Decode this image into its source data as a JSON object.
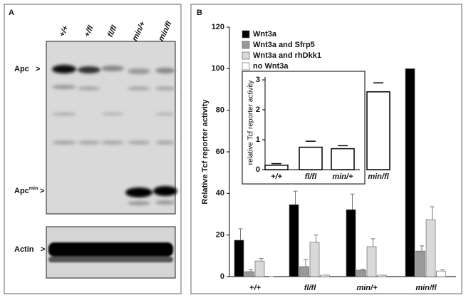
{
  "panel_a": {
    "label": "A",
    "lanes": [
      "+/+",
      "+/fl",
      "fl/fl",
      "min/+",
      "min/fl"
    ],
    "bands": [
      {
        "name": "Apc",
        "marker": ">"
      },
      {
        "name": "Apc",
        "sup": "min",
        "marker": ">"
      },
      {
        "name": "Actin",
        "marker": ">"
      }
    ]
  },
  "chart_data": [
    {
      "type": "bar",
      "panel": "B",
      "ylabel": "Relative Tcf reporter activity",
      "categories": [
        "+/+",
        "fl/fl",
        "min/+",
        "min/fl"
      ],
      "series": [
        {
          "name": "Wnt3a",
          "color": "#000000",
          "values": [
            17.5,
            34.6,
            32.2,
            100
          ],
          "errors": [
            5.5,
            6.5,
            7.5,
            0
          ]
        },
        {
          "name": "Wnt3a and Sfrp5",
          "color": "#999999",
          "values": [
            2.4,
            4.8,
            3.1,
            12.3
          ],
          "errors": [
            1,
            3.4,
            0.5,
            2.5
          ]
        },
        {
          "name": "Wnt3a and rhDkk1",
          "color": "#d9d9d9",
          "values": [
            7.5,
            16.5,
            14.4,
            27.4
          ],
          "errors": [
            1.2,
            3.5,
            3.8,
            6.2
          ]
        },
        {
          "name": "no Wnt3a",
          "color": "#ffffff",
          "values": [
            0,
            0.7,
            0.7,
            2.7
          ],
          "errors": [
            0,
            0,
            0,
            0.6
          ]
        }
      ],
      "ylim": [
        0,
        120
      ],
      "yticks": [
        0,
        20,
        40,
        60,
        80,
        100,
        120
      ],
      "legend": "top-left"
    },
    {
      "type": "bar",
      "ylabel": "relative Tcf reporter activity",
      "categories": [
        "+/+",
        "fl/fl",
        "min/+",
        "min/fl"
      ],
      "values": [
        0.15,
        0.75,
        0.7,
        2.6
      ],
      "errors": [
        0.05,
        0.2,
        0.1,
        0.3
      ],
      "color": "#ffffff",
      "ylim": [
        0,
        3
      ],
      "yticks": [
        0,
        1,
        2,
        3
      ]
    }
  ]
}
